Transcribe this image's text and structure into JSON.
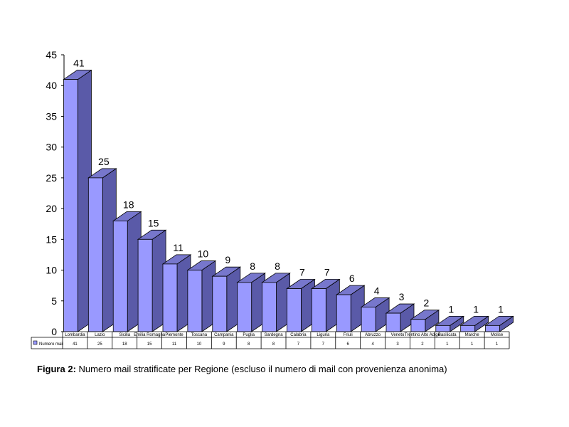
{
  "chart_data": {
    "type": "bar",
    "categories": [
      "Lombardia",
      "Lazio",
      "Sicilia",
      "Emilia Romagna",
      "Piemonte",
      "Toscana",
      "Campania",
      "Puglia",
      "Sardegna",
      "Calabria",
      "Liguria",
      "Friuli",
      "Abruzzo",
      "Veneto",
      "Trentino Alto Adige",
      "Basilicata",
      "Marche",
      "Molise"
    ],
    "series": [
      {
        "name": "Numero mail",
        "values": [
          41,
          25,
          18,
          15,
          11,
          10,
          9,
          8,
          8,
          7,
          7,
          6,
          4,
          3,
          2,
          1,
          1,
          1
        ]
      }
    ],
    "ylim": [
      0,
      45
    ],
    "yticks": [
      0,
      5,
      10,
      15,
      20,
      25,
      30,
      35,
      40,
      45
    ],
    "grid": false,
    "style": "3d-columns-with-data-table",
    "colors": {
      "front": "#9999ff",
      "side": "#5a5aa8",
      "top": "#7777cc",
      "edge": "#000000"
    }
  },
  "caption": {
    "prefix": "Figura 2:",
    "text": " Numero mail stratificate per Regione (escluso il numero di mail con provenienza anonima)"
  }
}
